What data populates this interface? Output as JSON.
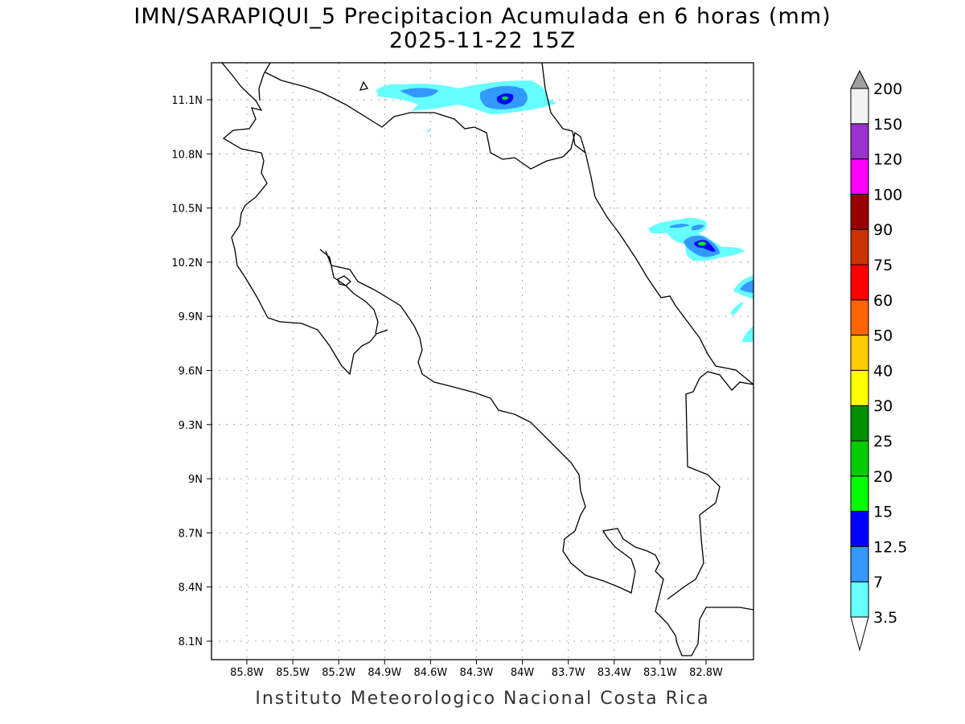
{
  "title": {
    "line1": "IMN/SARAPIQUI_5 Precipitacion Acumulada en 6 horas (mm)",
    "line2": "2025-11-22 15Z"
  },
  "footer": "Instituto Meteorologico Nacional Costa Rica",
  "map": {
    "region": "Costa Rica",
    "lon_ticks": [
      "85.8W",
      "85.5W",
      "85.2W",
      "84.9W",
      "84.6W",
      "84.3W",
      "84W",
      "83.7W",
      "83.4W",
      "83.1W",
      "82.8W"
    ],
    "lat_ticks": [
      "11.1N",
      "10.8N",
      "10.5N",
      "10.2N",
      "9.9N",
      "9.6N",
      "9.3N",
      "9N",
      "8.7N",
      "8.4N",
      "8.1N"
    ],
    "grid": "dotted",
    "coastline_color": "#000000"
  },
  "colorbar": {
    "levels": [
      "3.5",
      "7",
      "12.5",
      "15",
      "20",
      "25",
      "30",
      "40",
      "50",
      "60",
      "75",
      "90",
      "100",
      "120",
      "150",
      "200"
    ],
    "colors": [
      "#66ffff",
      "#3399ff",
      "#0000ff",
      "#00ff00",
      "#00cc00",
      "#009000",
      "#ffff00",
      "#ffcc00",
      "#ff6600",
      "#ff0000",
      "#cc3300",
      "#990000",
      "#ff00ff",
      "#9933cc",
      "#f2f2f2"
    ],
    "under_color": "#ffffff",
    "over_color": "#a0a0a0"
  }
}
